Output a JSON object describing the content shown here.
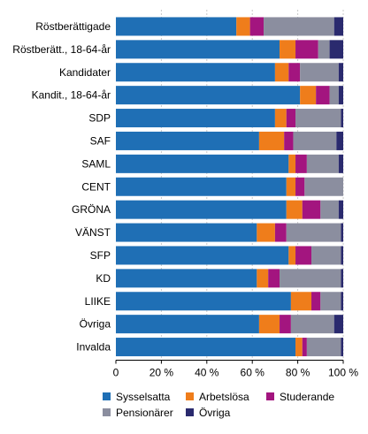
{
  "chart_data": {
    "type": "bar",
    "orientation": "horizontal",
    "stacked": true,
    "percent_axis": true,
    "xlim": [
      0,
      100
    ],
    "x_ticks": [
      "0",
      "20 %",
      "40 %",
      "60 %",
      "80 %",
      "100 %"
    ],
    "grid": "vertical dashed",
    "legend_position": "bottom",
    "categories": [
      "Röstberättigade",
      "Röstberätt., 18-64-år",
      "Kandidater",
      "Kandit., 18-64-år",
      "SDP",
      "SAF",
      "SAML",
      "CENT",
      "GRÖNA",
      "VÄNST",
      "SFP",
      "KD",
      "LIIKE",
      "Övriga",
      "Invalda"
    ],
    "series": [
      {
        "name": "Sysselsatta",
        "color": "#1f6fb5",
        "values": [
          53,
          72,
          70,
          81,
          70,
          63,
          76,
          75,
          75,
          62,
          76,
          62,
          77,
          63,
          79
        ]
      },
      {
        "name": "Arbetslösa",
        "color": "#ef7d1b",
        "values": [
          6,
          7,
          6,
          7,
          5,
          11,
          3,
          4,
          7,
          8,
          3,
          5,
          9,
          9,
          3
        ]
      },
      {
        "name": "Studerande",
        "color": "#a3157f",
        "values": [
          6,
          10,
          5,
          6,
          4,
          4,
          5,
          4,
          8,
          5,
          7,
          5,
          4,
          5,
          2
        ]
      },
      {
        "name": "Pensionärer",
        "color": "#8b8e9f",
        "values": [
          31,
          5,
          17,
          4,
          20,
          19,
          14,
          17,
          8,
          24,
          13,
          27,
          9,
          19,
          15
        ]
      },
      {
        "name": "Övriga",
        "color": "#2a2a6e",
        "values": [
          4,
          6,
          2,
          2,
          1,
          3,
          2,
          1,
          2,
          1,
          1,
          1,
          1,
          4,
          1
        ]
      }
    ]
  }
}
